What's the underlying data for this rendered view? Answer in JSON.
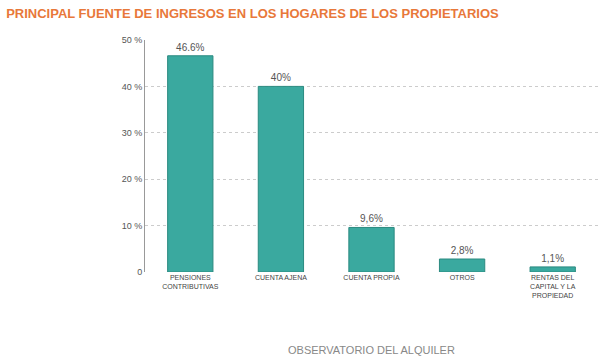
{
  "chart_data": {
    "type": "bar",
    "title": "PRINCIPAL FUENTE DE INGRESOS EN LOS HOGARES DE LOS PROPIETARIOS",
    "categories": [
      "PENSIONES CONTRIBUTIVAS",
      "CUENTA AJENA",
      "CUENTA PROPIA",
      "OTROS",
      "RENTAS DEL CAPITAL Y LA PROPIEDAD"
    ],
    "values": [
      46.6,
      40,
      9.6,
      2.8,
      1.1
    ],
    "value_labels": [
      "46.6%",
      "40%",
      "9,6%",
      "2,8%",
      "1,1%"
    ],
    "data_labels": true,
    "color": "#3aa99f",
    "ylim": [
      0,
      50
    ],
    "yticks": [
      0,
      {
        "value": 10,
        "label": "10 %"
      },
      {
        "value": 20,
        "label": "20 %"
      },
      {
        "value": 30,
        "label": "30 %"
      },
      {
        "value": 40,
        "label": "40 %"
      },
      {
        "value": 50,
        "label": "50 %"
      }
    ],
    "grid": true,
    "annotations": [
      "OBSERVATORIO DEL ALQUILER"
    ]
  }
}
